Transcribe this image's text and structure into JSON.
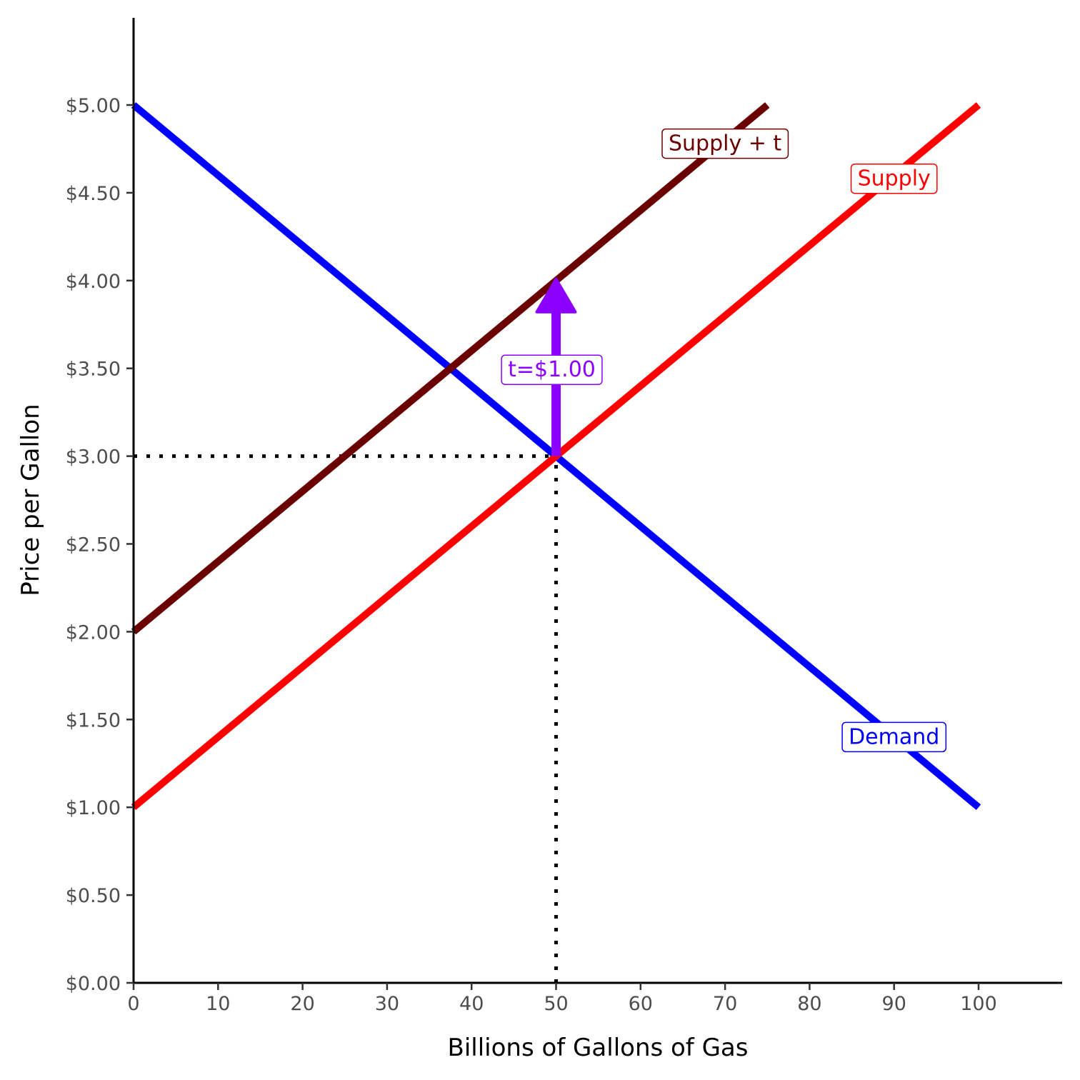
{
  "chart_data": {
    "type": "line",
    "xlabel": "Billions of Gallons of Gas",
    "ylabel": "Price per Gallon",
    "xlim": [
      0,
      110
    ],
    "ylim": [
      0,
      5.5
    ],
    "x_ticks": [
      0,
      10,
      20,
      30,
      40,
      50,
      60,
      70,
      80,
      90,
      100
    ],
    "x_tick_labels": [
      "0",
      "10",
      "20",
      "30",
      "40",
      "50",
      "60",
      "70",
      "80",
      "90",
      "100"
    ],
    "y_ticks": [
      0,
      0.5,
      1,
      1.5,
      2,
      2.5,
      3,
      3.5,
      4,
      4.5,
      5
    ],
    "y_tick_labels": [
      "$0.00",
      "$0.50",
      "$1.00",
      "$1.50",
      "$2.00",
      "$2.50",
      "$3.00",
      "$3.50",
      "$4.00",
      "$4.50",
      "$5.00"
    ],
    "grid": false,
    "series": [
      {
        "name": "Demand",
        "color": "#0000ff",
        "x": [
          0,
          100
        ],
        "y": [
          5,
          1
        ]
      },
      {
        "name": "Supply",
        "color": "#ff0000",
        "x": [
          0,
          100
        ],
        "y": [
          1,
          5
        ]
      },
      {
        "name": "Supply + t",
        "color": "#6b0000",
        "x": [
          0,
          75
        ],
        "y": [
          2,
          5
        ]
      }
    ],
    "labels": [
      {
        "text": "Supply + t",
        "x": 70,
        "y": 4.78,
        "color": "#6b0000"
      },
      {
        "text": "Supply",
        "x": 90,
        "y": 4.58,
        "color": "#ff0000"
      },
      {
        "text": "Demand",
        "x": 90,
        "y": 1.4,
        "color": "#0000ff"
      }
    ],
    "reference_lines": [
      {
        "type": "horizontal",
        "y": 3,
        "x_from": 0,
        "x_to": 50,
        "style": "dotted",
        "color": "#000000"
      },
      {
        "type": "vertical",
        "x": 50,
        "y_from": 0,
        "y_to": 3,
        "style": "dotted",
        "color": "#000000"
      }
    ],
    "arrow": {
      "x": 50,
      "y_from": 3,
      "y_to": 4,
      "color": "#8b00ff",
      "label": "t=$1.00",
      "label_y": 3.5
    }
  }
}
